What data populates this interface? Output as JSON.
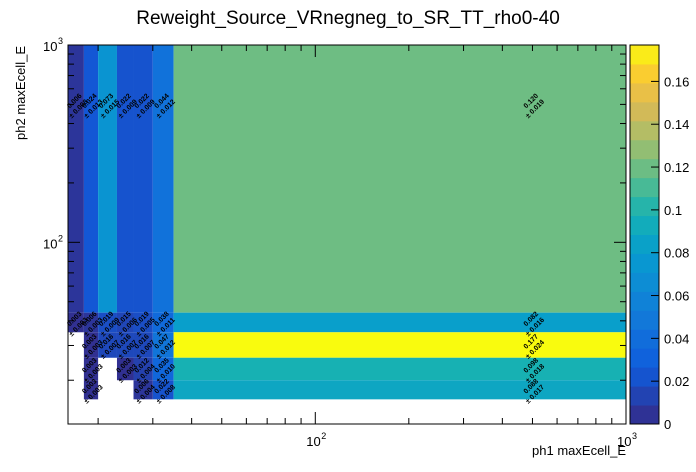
{
  "chart_data": {
    "type": "heatmap",
    "title": "Reweight_Source_VRnegneg_to_SR_TT_rho0-40",
    "xlabel": "ph1 maxEcell_E",
    "ylabel": "ph2 maxEcell_E",
    "x_scale": "log",
    "y_scale": "log",
    "xlim": [
      16,
      1000
    ],
    "ylim": [
      12,
      1000
    ],
    "x_ticks": [
      {
        "value": 100,
        "base": "10",
        "exp": "2"
      },
      {
        "value": 1000,
        "base": "10",
        "exp": "3"
      }
    ],
    "y_ticks": [
      {
        "value": 100,
        "base": "10",
        "exp": "2"
      },
      {
        "value": 1000,
        "base": "10",
        "exp": "3"
      }
    ],
    "x_edges": [
      16,
      18,
      20,
      23,
      26,
      30,
      35,
      1000
    ],
    "y_edges": [
      12,
      16,
      20,
      26,
      35,
      44,
      1000
    ],
    "zlim": [
      0,
      0.177
    ],
    "colorbar_ticks": [
      "0",
      "0.02",
      "0.04",
      "0.06",
      "0.08",
      "0.1",
      "0.12",
      "0.14",
      "0.16"
    ],
    "cells": [
      {
        "ix": 0,
        "iy": 5,
        "v": 0.006,
        "label": "0.006",
        "err": "± 0.008"
      },
      {
        "ix": 1,
        "iy": 5,
        "v": 0.024,
        "label": "0.024",
        "err": "± 0.013"
      },
      {
        "ix": 2,
        "iy": 5,
        "v": 0.073,
        "label": "0.073",
        "err": "± 0.015"
      },
      {
        "ix": 3,
        "iy": 5,
        "v": 0.022,
        "label": "0.022",
        "err": "± 0.009"
      },
      {
        "ix": 4,
        "iy": 5,
        "v": 0.022,
        "label": "0.022",
        "err": "± 0.009"
      },
      {
        "ix": 5,
        "iy": 5,
        "v": 0.044,
        "label": "0.044",
        "err": "± 0.012"
      },
      {
        "ix": 6,
        "iy": 5,
        "v": 0.12,
        "label": "0.120",
        "err": "± 0.019"
      },
      {
        "ix": 0,
        "iy": 4,
        "v": 0.003,
        "label": "0.003",
        "err": "± 0.003"
      },
      {
        "ix": 1,
        "iy": 4,
        "v": 0.006,
        "label": "0.006",
        "err": "± 0.003"
      },
      {
        "ix": 2,
        "iy": 4,
        "v": 0.019,
        "label": "0.019",
        "err": "± 0.009"
      },
      {
        "ix": 3,
        "iy": 4,
        "v": 0.015,
        "label": "0.015",
        "err": "± 0.006"
      },
      {
        "ix": 4,
        "iy": 4,
        "v": 0.019,
        "label": "0.019",
        "err": "± 0.005"
      },
      {
        "ix": 5,
        "iy": 4,
        "v": 0.038,
        "label": "0.038",
        "err": "± 0.011"
      },
      {
        "ix": 6,
        "iy": 4,
        "v": 0.082,
        "label": "0.082",
        "err": "± 0.016"
      },
      {
        "ix": 1,
        "iy": 3,
        "v": 0.003,
        "label": "0.003",
        "err": "± 0.003"
      },
      {
        "ix": 2,
        "iy": 3,
        "v": 0.016,
        "label": "0.016",
        "err": "± 0.007"
      },
      {
        "ix": 3,
        "iy": 3,
        "v": 0.016,
        "label": "0.016",
        "err": "± 0.007"
      },
      {
        "ix": 4,
        "iy": 3,
        "v": 0.016,
        "label": "0.016",
        "err": "± 0.007"
      },
      {
        "ix": 5,
        "iy": 3,
        "v": 0.047,
        "label": "0.047",
        "err": "± 0.012"
      },
      {
        "ix": 6,
        "iy": 3,
        "v": 0.177,
        "label": "0.177",
        "err": "± 0.024"
      },
      {
        "ix": 1,
        "iy": 2,
        "v": 0.003,
        "label": "0.003",
        "err": "± 0.003"
      },
      {
        "ix": 3,
        "iy": 2,
        "v": 0.003,
        "label": "0.003",
        "err": "± 0.003"
      },
      {
        "ix": 4,
        "iy": 2,
        "v": 0.012,
        "label": "0.012",
        "err": "± 0.004"
      },
      {
        "ix": 5,
        "iy": 2,
        "v": 0.035,
        "label": "0.035",
        "err": "± 0.010"
      },
      {
        "ix": 6,
        "iy": 2,
        "v": 0.098,
        "label": "0.098",
        "err": "± 0.018"
      },
      {
        "ix": 1,
        "iy": 1,
        "v": 0.003,
        "label": "0.003",
        "err": "± 0.003"
      },
      {
        "ix": 4,
        "iy": 1,
        "v": 0.006,
        "label": "0.006",
        "err": "± 0.004"
      },
      {
        "ix": 5,
        "iy": 1,
        "v": 0.022,
        "label": "0.022",
        "err": "± 0.008"
      },
      {
        "ix": 6,
        "iy": 1,
        "v": 0.088,
        "label": "0.088",
        "err": "± 0.017"
      }
    ]
  }
}
